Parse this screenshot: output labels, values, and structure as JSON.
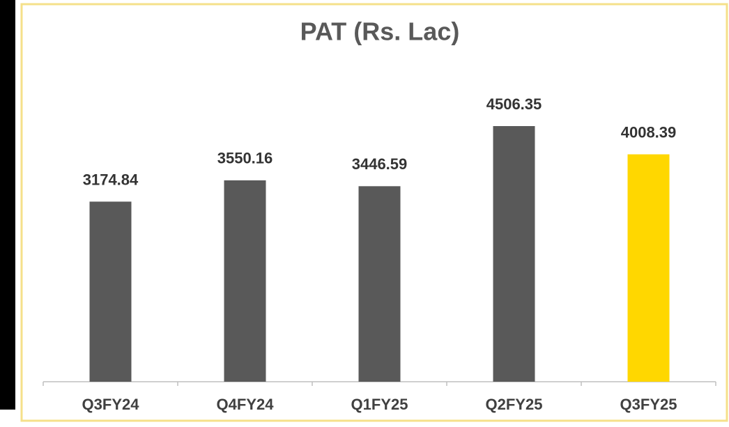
{
  "chart_data": {
    "type": "bar",
    "title": "PAT (Rs. Lac)",
    "categories": [
      "Q3FY24",
      "Q4FY24",
      "Q1FY25",
      "Q2FY25",
      "Q3FY25"
    ],
    "values": [
      3174.84,
      3550.16,
      3446.59,
      4506.35,
      4008.39
    ],
    "colors": [
      "#595959",
      "#595959",
      "#595959",
      "#595959",
      "#ffd700"
    ]
  }
}
